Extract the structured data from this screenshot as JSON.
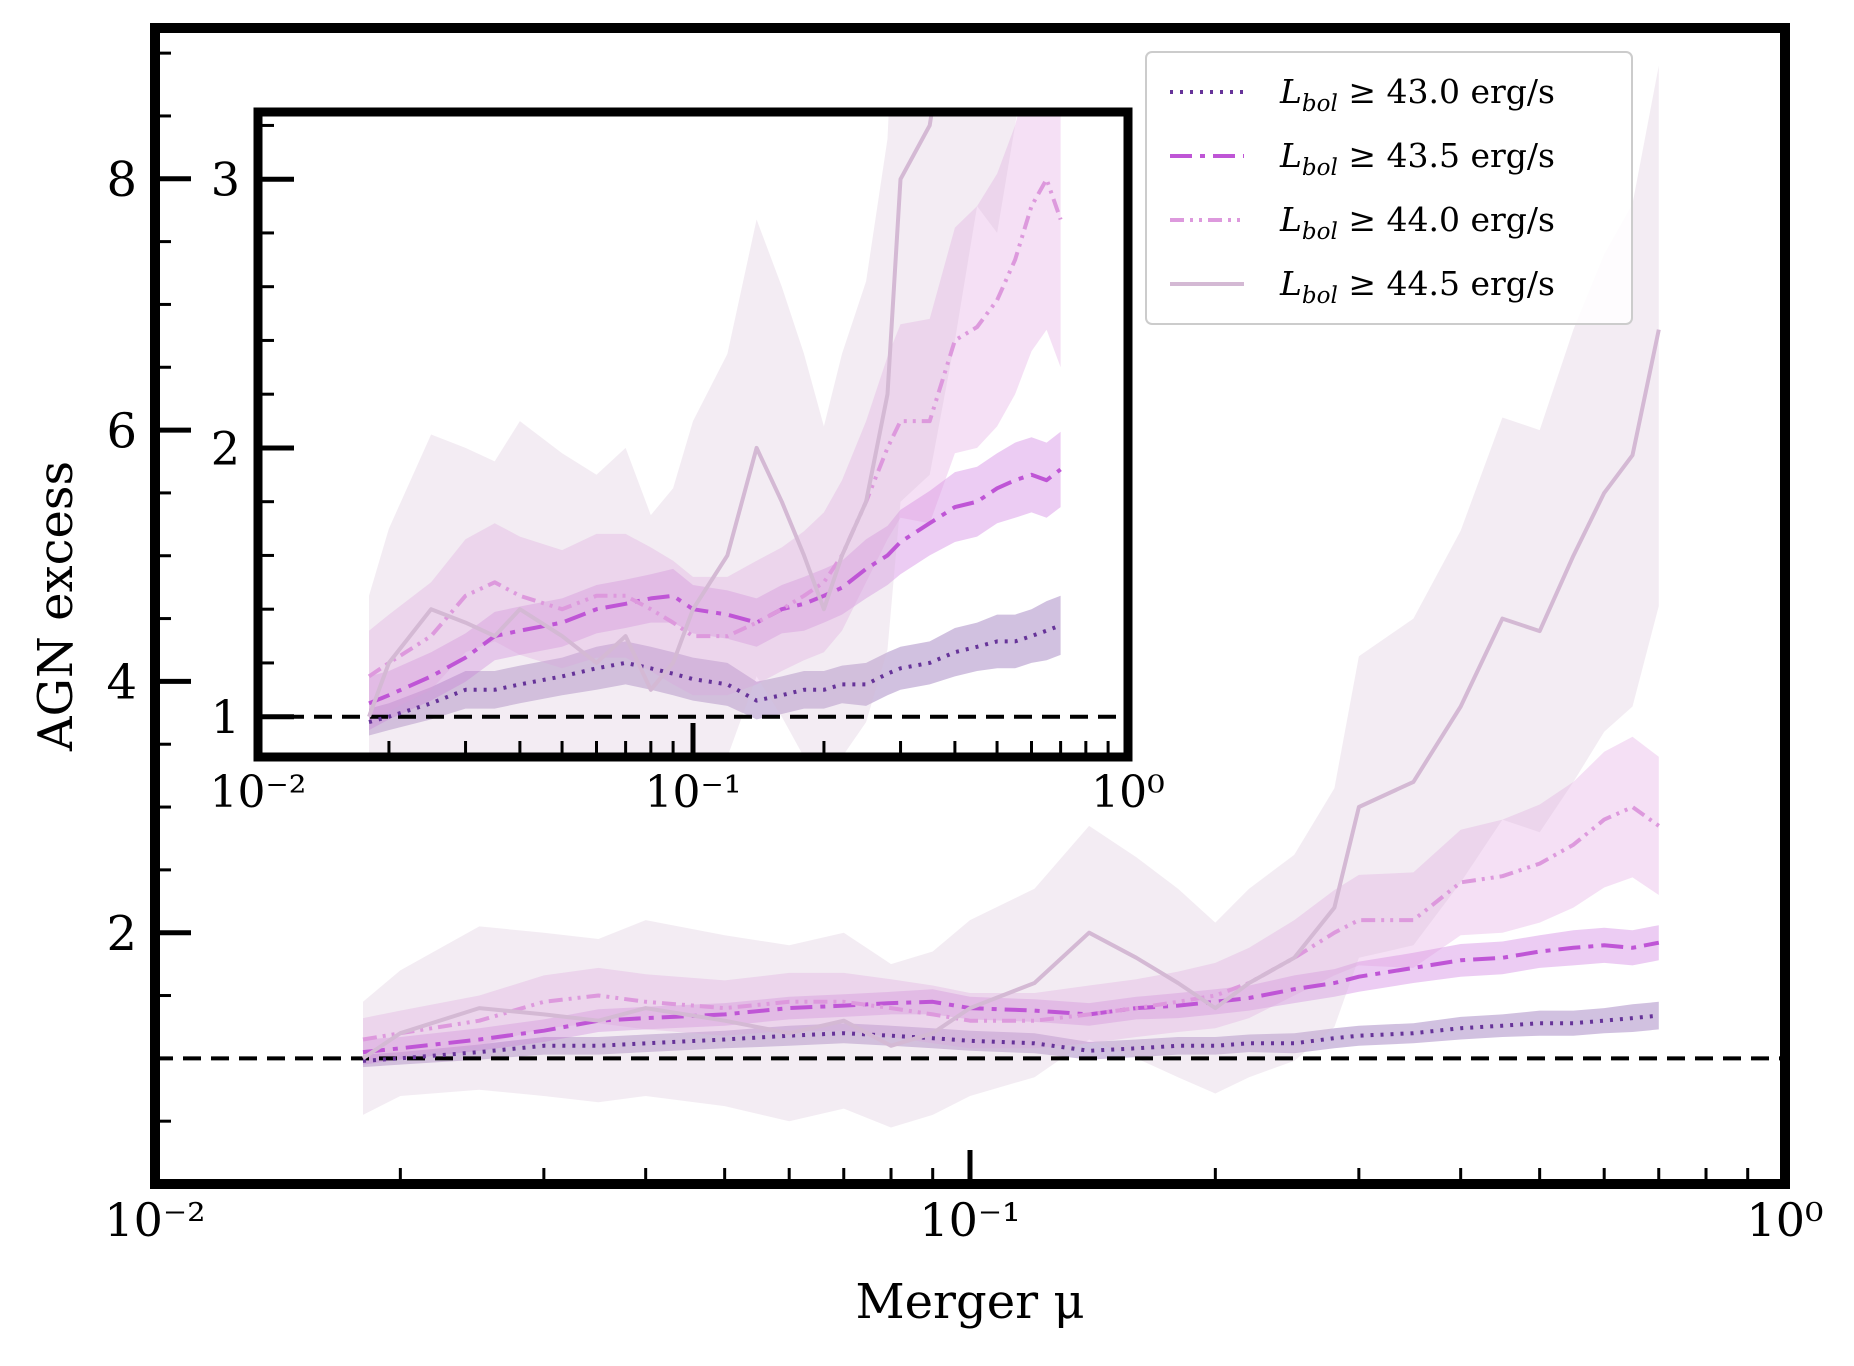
{
  "chart_data": {
    "type": "line",
    "xlabel": "Merger μ",
    "ylabel": "AGN excess",
    "xscale": "log",
    "xlim": [
      0.01,
      1.0
    ],
    "ylim": [
      0,
      9.2
    ],
    "x_tick_labels": [
      "10⁻²",
      "10⁻¹",
      "10⁰"
    ],
    "y_tick_labels": [
      "2",
      "4",
      "6",
      "8"
    ],
    "reference_line": {
      "y": 1.0,
      "style": "dashed",
      "color": "#000000"
    },
    "legend": {
      "placement": "top-right",
      "title": ""
    },
    "x": [
      0.018,
      0.02,
      0.025,
      0.03,
      0.035,
      0.04,
      0.05,
      0.06,
      0.07,
      0.08,
      0.09,
      0.1,
      0.12,
      0.14,
      0.16,
      0.18,
      0.2,
      0.22,
      0.25,
      0.28,
      0.3,
      0.35,
      0.4,
      0.45,
      0.5,
      0.55,
      0.6,
      0.65,
      0.7
    ],
    "series": [
      {
        "name_prefix": "L",
        "name_sub": "bol",
        "name_suffix": " ≥ 43.0 erg/s",
        "color": "#663399",
        "dash": "3,7",
        "width": 4,
        "values": [
          0.98,
          1.0,
          1.05,
          1.1,
          1.1,
          1.12,
          1.15,
          1.18,
          1.2,
          1.18,
          1.16,
          1.14,
          1.12,
          1.06,
          1.08,
          1.1,
          1.1,
          1.12,
          1.12,
          1.16,
          1.18,
          1.2,
          1.24,
          1.26,
          1.28,
          1.28,
          1.3,
          1.32,
          1.34
        ],
        "lower": [
          0.93,
          0.95,
          0.99,
          1.03,
          1.03,
          1.05,
          1.08,
          1.1,
          1.12,
          1.1,
          1.08,
          1.06,
          1.04,
          0.99,
          1.01,
          1.03,
          1.03,
          1.05,
          1.04,
          1.08,
          1.1,
          1.12,
          1.15,
          1.17,
          1.18,
          1.18,
          1.2,
          1.21,
          1.23
        ],
        "upper": [
          1.03,
          1.05,
          1.11,
          1.17,
          1.17,
          1.19,
          1.22,
          1.26,
          1.28,
          1.26,
          1.24,
          1.22,
          1.2,
          1.13,
          1.15,
          1.17,
          1.17,
          1.19,
          1.2,
          1.24,
          1.26,
          1.28,
          1.33,
          1.35,
          1.38,
          1.38,
          1.4,
          1.43,
          1.45
        ]
      },
      {
        "name_prefix": "L",
        "name_sub": "bol",
        "name_suffix": " ≥ 43.5 erg/s",
        "color": "#bf55d6",
        "dash": "22,8,5,8",
        "width": 4,
        "values": [
          1.05,
          1.08,
          1.15,
          1.22,
          1.3,
          1.32,
          1.35,
          1.4,
          1.42,
          1.44,
          1.45,
          1.4,
          1.38,
          1.35,
          1.4,
          1.42,
          1.45,
          1.48,
          1.55,
          1.6,
          1.65,
          1.72,
          1.78,
          1.8,
          1.85,
          1.88,
          1.9,
          1.88,
          1.92
        ],
        "lower": [
          0.95,
          0.99,
          1.06,
          1.13,
          1.21,
          1.23,
          1.26,
          1.31,
          1.33,
          1.35,
          1.35,
          1.31,
          1.29,
          1.26,
          1.31,
          1.32,
          1.35,
          1.38,
          1.44,
          1.49,
          1.53,
          1.6,
          1.65,
          1.67,
          1.72,
          1.74,
          1.76,
          1.74,
          1.78
        ],
        "upper": [
          1.15,
          1.17,
          1.24,
          1.31,
          1.39,
          1.41,
          1.44,
          1.49,
          1.51,
          1.53,
          1.55,
          1.49,
          1.47,
          1.44,
          1.49,
          1.52,
          1.55,
          1.58,
          1.66,
          1.71,
          1.77,
          1.84,
          1.91,
          1.93,
          1.98,
          2.02,
          2.04,
          2.02,
          2.06
        ]
      },
      {
        "name_prefix": "L",
        "name_sub": "bol",
        "name_suffix": " ≥ 44.0 erg/s",
        "color": "#dd99dd",
        "dash": "14,6,3,6,3,6",
        "width": 4,
        "values": [
          1.15,
          1.2,
          1.3,
          1.45,
          1.5,
          1.45,
          1.4,
          1.45,
          1.45,
          1.4,
          1.35,
          1.3,
          1.3,
          1.35,
          1.4,
          1.45,
          1.5,
          1.6,
          1.8,
          2.0,
          2.1,
          2.1,
          2.4,
          2.45,
          2.55,
          2.7,
          2.9,
          3.0,
          2.85
        ],
        "lower": [
          0.98,
          1.02,
          1.1,
          1.24,
          1.28,
          1.23,
          1.18,
          1.22,
          1.22,
          1.17,
          1.12,
          1.08,
          1.08,
          1.12,
          1.17,
          1.21,
          1.24,
          1.32,
          1.5,
          1.66,
          1.74,
          1.72,
          1.98,
          2.0,
          2.08,
          2.2,
          2.36,
          2.44,
          2.3
        ],
        "upper": [
          1.32,
          1.38,
          1.5,
          1.66,
          1.72,
          1.67,
          1.62,
          1.68,
          1.68,
          1.63,
          1.58,
          1.52,
          1.52,
          1.58,
          1.63,
          1.69,
          1.76,
          1.88,
          2.1,
          2.34,
          2.46,
          2.48,
          2.82,
          2.9,
          3.02,
          3.2,
          3.44,
          3.56,
          3.4
        ]
      },
      {
        "name_prefix": "L",
        "name_sub": "bol",
        "name_suffix": " ≥ 44.5 erg/s",
        "color": "#d4b9d4",
        "dash": "",
        "width": 4,
        "values": [
          1.0,
          1.2,
          1.4,
          1.35,
          1.3,
          1.4,
          1.3,
          1.2,
          1.3,
          1.1,
          1.2,
          1.4,
          1.6,
          2.0,
          1.8,
          1.6,
          1.4,
          1.6,
          1.8,
          2.2,
          3.0,
          3.2,
          3.8,
          4.5,
          4.4,
          5.0,
          5.5,
          5.8,
          6.8
        ],
        "lower": [
          0.55,
          0.7,
          0.75,
          0.7,
          0.65,
          0.7,
          0.62,
          0.5,
          0.6,
          0.45,
          0.55,
          0.7,
          0.85,
          1.15,
          1.0,
          0.85,
          0.72,
          0.85,
          0.98,
          1.25,
          1.8,
          1.9,
          2.4,
          2.9,
          2.8,
          3.2,
          3.6,
          3.8,
          4.6
        ],
        "upper": [
          1.45,
          1.7,
          2.05,
          2.0,
          1.95,
          2.1,
          1.98,
          1.9,
          2.0,
          1.75,
          1.85,
          2.1,
          2.35,
          2.85,
          2.6,
          2.35,
          2.08,
          2.35,
          2.62,
          3.15,
          4.2,
          4.5,
          5.2,
          6.1,
          6.0,
          6.8,
          7.4,
          7.8,
          8.9
        ]
      }
    ],
    "inset": {
      "xscale": "log",
      "xlim": [
        0.01,
        1.0
      ],
      "ylim": [
        0.85,
        3.25
      ],
      "x_tick_labels": [
        "10⁻²",
        "10⁻¹",
        "10⁰"
      ],
      "y_tick_labels": [
        "1",
        "2",
        "3"
      ],
      "reference_line": {
        "y": 1.0,
        "style": "dashed",
        "color": "#000000"
      }
    }
  }
}
